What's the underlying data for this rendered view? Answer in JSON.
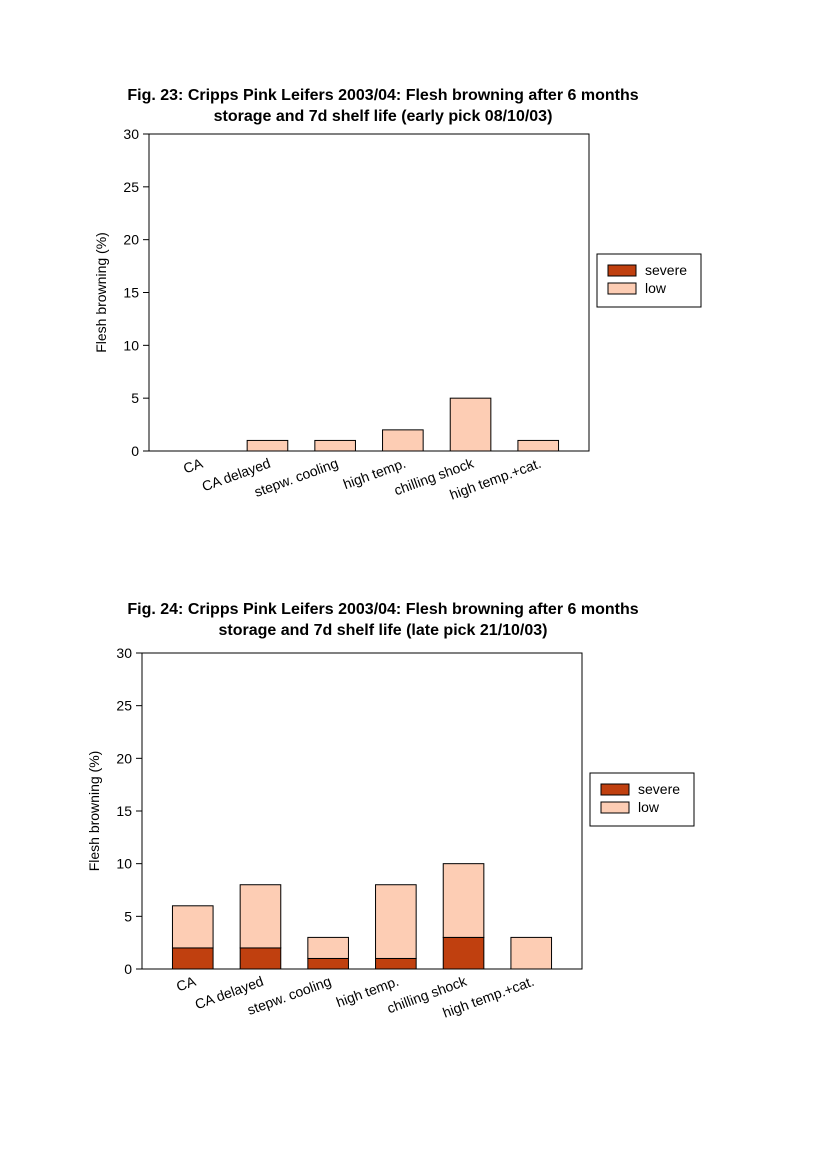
{
  "chart_data": [
    {
      "type": "bar",
      "stacked": true,
      "title_line1": "Fig. 23: Cripps Pink Leifers 2003/04: Flesh browning after 6 months",
      "title_line2": "storage and 7d shelf life (early pick 08/10/03)",
      "xlabel": "",
      "ylabel": "Flesh browning (%)",
      "ylim": [
        0,
        30
      ],
      "yticks": [
        0,
        5,
        10,
        15,
        20,
        25,
        30
      ],
      "grid": false,
      "legend_position": "right",
      "categories": [
        "CA",
        "CA delayed",
        "stepw. cooling",
        "high temp.",
        "chilling shock",
        "high temp.+cat."
      ],
      "series": [
        {
          "name": "severe",
          "color": "#c0400f",
          "values": [
            0,
            0,
            0,
            0,
            0,
            0
          ]
        },
        {
          "name": "low",
          "color": "#fdcdb4",
          "values": [
            0,
            1,
            1,
            2,
            5,
            1
          ]
        }
      ]
    },
    {
      "type": "bar",
      "stacked": true,
      "title_line1": "Fig. 24: Cripps Pink Leifers 2003/04: Flesh browning after 6 months",
      "title_line2": "storage and 7d shelf life (late pick 21/10/03)",
      "xlabel": "",
      "ylabel": "Flesh browning (%)",
      "ylim": [
        0,
        30
      ],
      "yticks": [
        0,
        5,
        10,
        15,
        20,
        25,
        30
      ],
      "grid": false,
      "legend_position": "right",
      "categories": [
        "CA",
        "CA delayed",
        "stepw. cooling",
        "high temp.",
        "chilling shock",
        "high temp.+cat."
      ],
      "series": [
        {
          "name": "severe",
          "color": "#c0400f",
          "values": [
            2,
            2,
            1,
            1,
            3,
            0
          ]
        },
        {
          "name": "low",
          "color": "#fdcdb4",
          "values": [
            4,
            6,
            2,
            7,
            7,
            3
          ]
        }
      ]
    }
  ]
}
